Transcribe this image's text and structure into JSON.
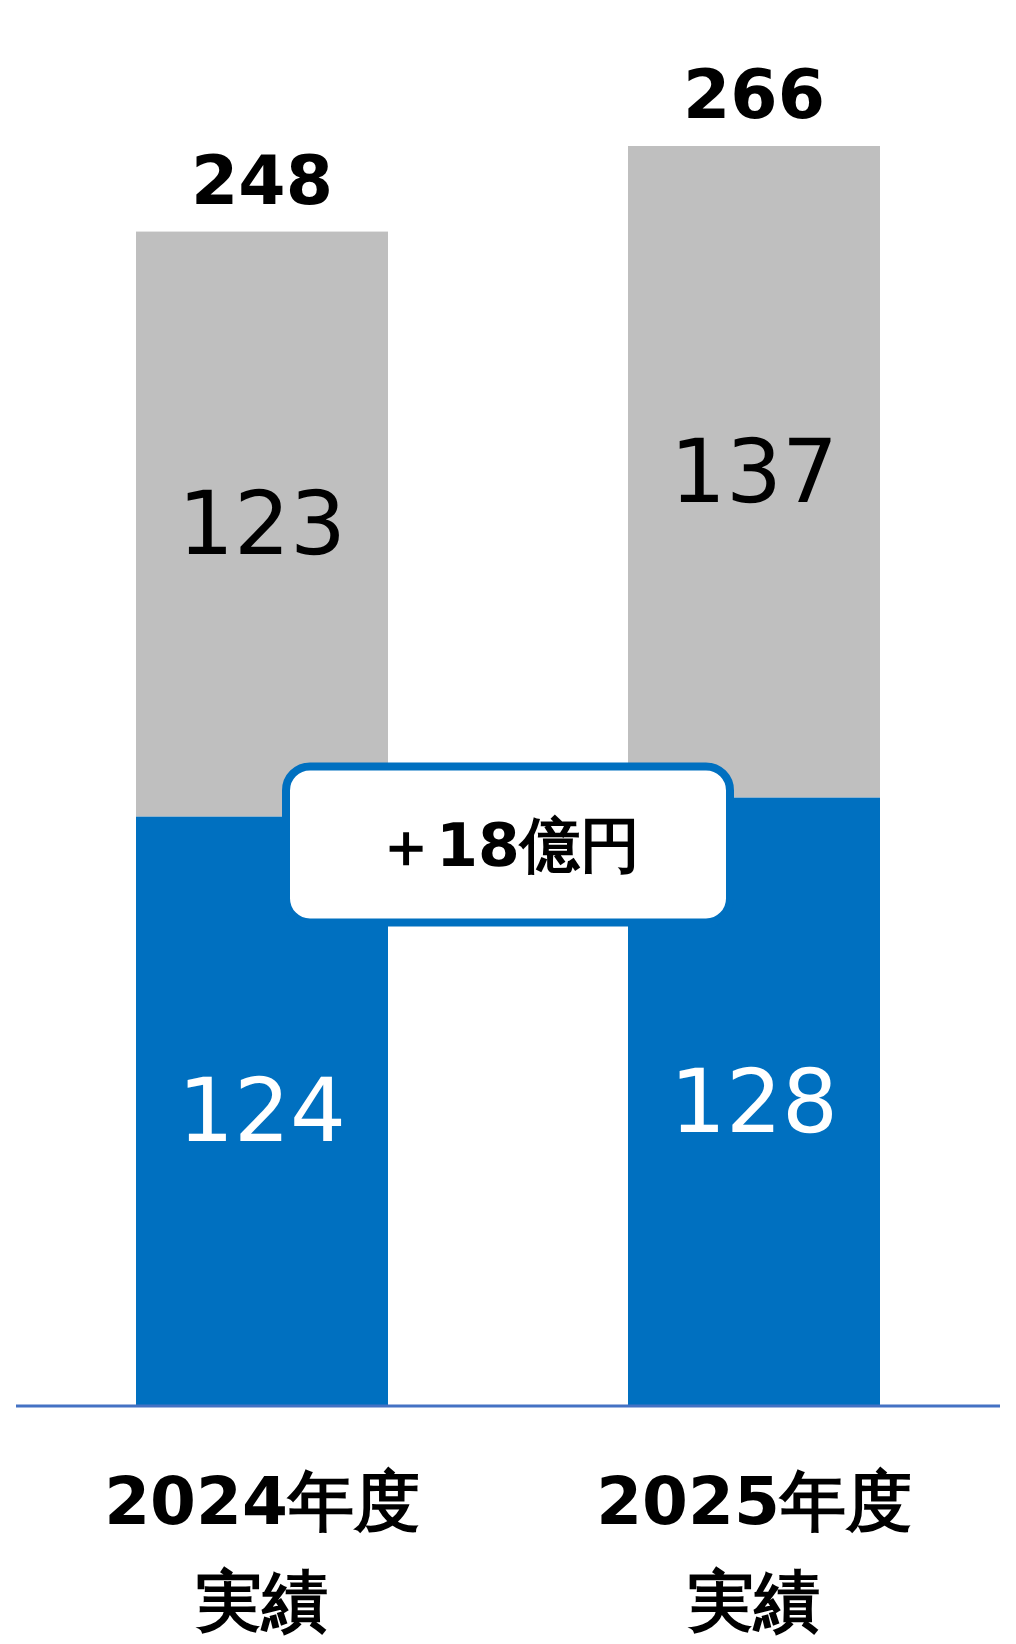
{
  "chart_data": {
    "type": "bar",
    "stacked": true,
    "data_labels": true,
    "categories": [
      "2024年度実績",
      "2025年度実績"
    ],
    "series": [
      {
        "color": "#0070c0",
        "values": [
          124,
          128
        ]
      },
      {
        "color": "#bfbfbf",
        "values": [
          123,
          137
        ]
      }
    ],
    "totals": [
      "248",
      "266"
    ],
    "annotations": [
      "＋18億円"
    ]
  }
}
